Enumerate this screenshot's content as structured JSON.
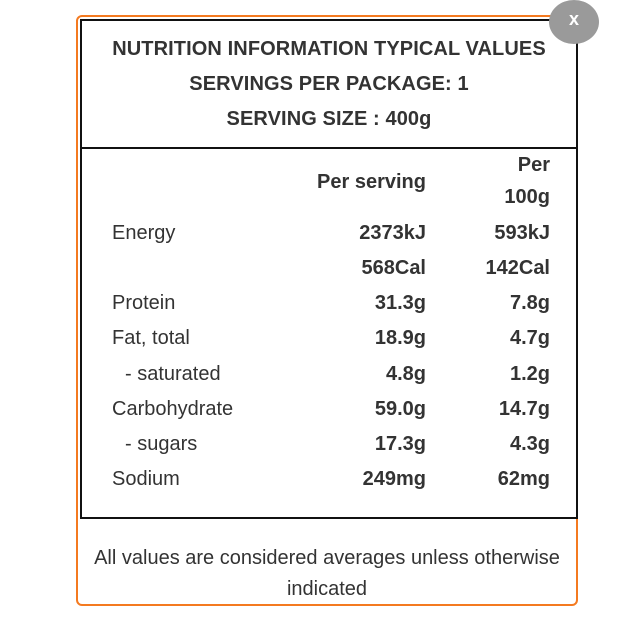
{
  "header": {
    "line1": "NUTRITION INFORMATION TYPICAL VALUES",
    "line2": "SERVINGS PER PACKAGE: 1",
    "line3": "SERVING SIZE : 400g"
  },
  "columns": {
    "per_serving": "Per serving",
    "per_100g_line1": "Per",
    "per_100g_line2": "100g"
  },
  "rows": [
    {
      "label": "Energy",
      "serving": "2373kJ",
      "per100": "593kJ"
    },
    {
      "label": "",
      "serving": "568Cal",
      "per100": "142Cal"
    },
    {
      "label": "Protein",
      "serving": "31.3g",
      "per100": "7.8g"
    },
    {
      "label": "Fat, total",
      "serving": "18.9g",
      "per100": "4.7g"
    },
    {
      "label": "- saturated",
      "serving": "4.8g",
      "per100": "1.2g"
    },
    {
      "label": "Carbohydrate",
      "serving": "59.0g",
      "per100": "14.7g"
    },
    {
      "label": "- sugars",
      "serving": "17.3g",
      "per100": "4.3g"
    },
    {
      "label": "Sodium",
      "serving": "249mg",
      "per100": "62mg"
    }
  ],
  "footer": {
    "note": "All values are considered averages unless otherwise indicated"
  },
  "close_button": {
    "label": "x"
  },
  "colors": {
    "accent_border": "#f47a20",
    "close_button_bg": "#9a9a9a",
    "text": "#333333"
  }
}
